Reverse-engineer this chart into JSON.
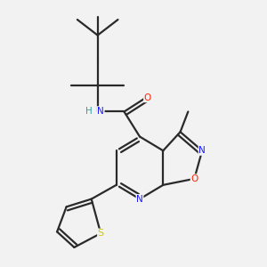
{
  "background_color": "#f2f2f2",
  "bond_color": "#2a2a2a",
  "atom_colors": {
    "N": "#1a1aff",
    "O": "#ff2200",
    "S": "#cccc00",
    "NH": "#1a1aff",
    "H": "#30a0a0"
  }
}
